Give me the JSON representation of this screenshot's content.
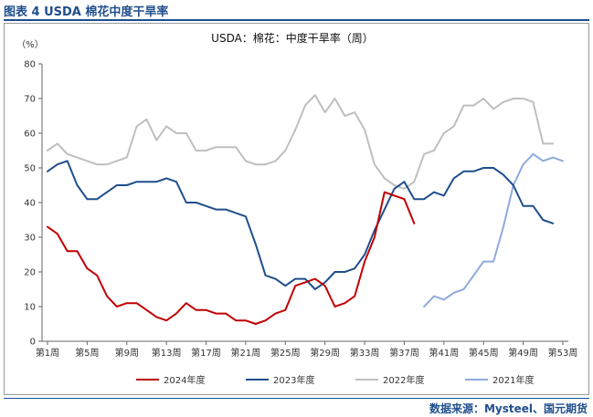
{
  "figure": {
    "caption": "图表 4 USDA 棉花中度干旱率",
    "source": "数据来源：Mysteel、国元期货"
  },
  "colors": {
    "caption": "#1f4e8c",
    "axis": "#666666"
  },
  "chart_data": {
    "type": "line",
    "title": "USDA：棉花：中度干旱率（周）",
    "ylabel": "（%）",
    "xlabel": "",
    "ylim": [
      0,
      80
    ],
    "yticks": [
      0,
      10,
      20,
      30,
      40,
      50,
      60,
      70,
      80
    ],
    "xlim": [
      1,
      53
    ],
    "x_tick_labels": [
      "第1周",
      "第5周",
      "第9周",
      "第13周",
      "第17周",
      "第21周",
      "第25周",
      "第29周",
      "第33周",
      "第37周",
      "第41周",
      "第45周",
      "第49周",
      "第53周"
    ],
    "x_tick_weeks": [
      1,
      5,
      9,
      13,
      17,
      21,
      25,
      29,
      33,
      37,
      41,
      45,
      49,
      53
    ],
    "grid": false,
    "legend_position": "bottom",
    "series": [
      {
        "name": "2024年度",
        "color": "#c00000",
        "x": [
          1,
          2,
          3,
          4,
          5,
          6,
          7,
          8,
          9,
          10,
          11,
          12,
          13,
          14,
          15,
          16,
          17,
          18,
          19,
          20,
          21,
          22,
          23,
          24,
          25,
          26,
          27,
          28,
          29,
          30,
          31,
          32,
          33,
          34,
          35,
          36,
          37,
          38
        ],
        "y": [
          33,
          31,
          26,
          26,
          21,
          19,
          13,
          10,
          11,
          11,
          9,
          7,
          6,
          8,
          11,
          9,
          9,
          8,
          8,
          6,
          6,
          5,
          6,
          8,
          9,
          16,
          17,
          18,
          16,
          10,
          11,
          13,
          23,
          30,
          43,
          42,
          41,
          34
        ]
      },
      {
        "name": "2023年度",
        "color": "#1f4e8c",
        "x": [
          1,
          2,
          3,
          4,
          5,
          6,
          7,
          8,
          9,
          10,
          11,
          12,
          13,
          14,
          15,
          16,
          17,
          18,
          19,
          20,
          21,
          22,
          23,
          24,
          25,
          26,
          27,
          28,
          29,
          30,
          31,
          32,
          33,
          34,
          35,
          36,
          37,
          38,
          39,
          40,
          41,
          42,
          43,
          44,
          45,
          46,
          47,
          48,
          49,
          50,
          51,
          52
        ],
        "y": [
          49,
          51,
          52,
          45,
          41,
          41,
          43,
          45,
          45,
          46,
          46,
          46,
          47,
          46,
          40,
          40,
          39,
          38,
          38,
          37,
          36,
          28,
          19,
          18,
          16,
          18,
          18,
          15,
          17,
          20,
          20,
          21,
          25,
          32,
          38,
          44,
          46,
          41,
          41,
          43,
          42,
          47,
          49,
          49,
          50,
          50,
          48,
          45,
          39,
          39,
          35,
          34
        ]
      },
      {
        "name": "2022年度",
        "color": "#bfbfbf",
        "x": [
          1,
          2,
          3,
          4,
          5,
          6,
          7,
          8,
          9,
          10,
          11,
          12,
          13,
          14,
          15,
          16,
          17,
          18,
          19,
          20,
          21,
          22,
          23,
          24,
          25,
          26,
          27,
          28,
          29,
          30,
          31,
          32,
          33,
          34,
          35,
          36,
          37,
          38,
          39,
          40,
          41,
          42,
          43,
          44,
          45,
          46,
          47,
          48,
          49,
          50,
          51,
          52
        ],
        "y": [
          55,
          57,
          54,
          53,
          52,
          51,
          51,
          52,
          53,
          62,
          64,
          58,
          62,
          60,
          60,
          55,
          55,
          56,
          56,
          56,
          52,
          51,
          51,
          52,
          55,
          61,
          68,
          71,
          66,
          70,
          65,
          66,
          61,
          51,
          47,
          45,
          44,
          46,
          54,
          55,
          60,
          62,
          68,
          68,
          70,
          67,
          69,
          70,
          70,
          69,
          57,
          57
        ]
      },
      {
        "name": "2021年度",
        "color": "#8faadc",
        "x": [
          39,
          40,
          41,
          42,
          43,
          44,
          45,
          46,
          47,
          48,
          49,
          50,
          51,
          52,
          53
        ],
        "y": [
          10,
          13,
          12,
          14,
          15,
          19,
          23,
          23,
          33,
          45,
          51,
          54,
          52,
          53,
          52
        ]
      }
    ]
  }
}
